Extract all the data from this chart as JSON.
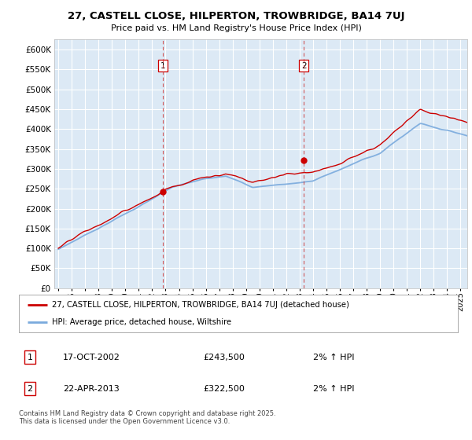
{
  "title_line1": "27, CASTELL CLOSE, HILPERTON, TROWBRIDGE, BA14 7UJ",
  "title_line2": "Price paid vs. HM Land Registry's House Price Index (HPI)",
  "ytick_labels": [
    "£0",
    "£50K",
    "£100K",
    "£150K",
    "£200K",
    "£250K",
    "£300K",
    "£350K",
    "£400K",
    "£450K",
    "£500K",
    "£550K",
    "£600K"
  ],
  "ytick_vals": [
    0,
    50000,
    100000,
    150000,
    200000,
    250000,
    300000,
    350000,
    400000,
    450000,
    500000,
    550000,
    600000
  ],
  "ylim": [
    0,
    625000
  ],
  "xlim_start": 1994.7,
  "xlim_end": 2025.5,
  "background_color": "#dce9f5",
  "figure_bg_color": "#ffffff",
  "red_line_color": "#cc0000",
  "blue_line_color": "#7aaadd",
  "grid_color": "#ffffff",
  "purchase1_x": 2002.79,
  "purchase1_y": 243500,
  "purchase1_label": "1",
  "purchase2_x": 2013.31,
  "purchase2_y": 322500,
  "purchase2_label": "2",
  "legend_line1": "27, CASTELL CLOSE, HILPERTON, TROWBRIDGE, BA14 7UJ (detached house)",
  "legend_line2": "HPI: Average price, detached house, Wiltshire",
  "annotation1_date": "17-OCT-2002",
  "annotation1_price": "£243,500",
  "annotation1_hpi": "2% ↑ HPI",
  "annotation2_date": "22-APR-2013",
  "annotation2_price": "£322,500",
  "annotation2_hpi": "2% ↑ HPI",
  "footer_text": "Contains HM Land Registry data © Crown copyright and database right 2025.\nThis data is licensed under the Open Government Licence v3.0.",
  "xtick_years": [
    1995,
    1996,
    1997,
    1998,
    1999,
    2000,
    2001,
    2002,
    2003,
    2004,
    2005,
    2006,
    2007,
    2008,
    2009,
    2010,
    2011,
    2012,
    2013,
    2014,
    2015,
    2016,
    2017,
    2018,
    2019,
    2020,
    2021,
    2022,
    2023,
    2024,
    2025
  ]
}
